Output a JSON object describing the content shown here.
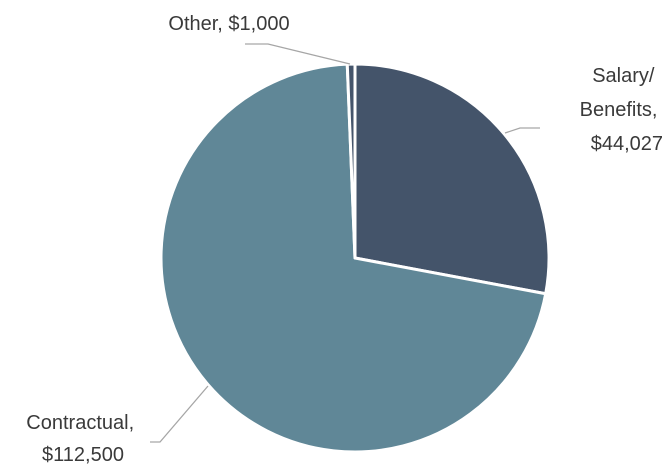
{
  "chart_data": {
    "type": "pie",
    "categories": [
      "Salary/ Benefits",
      "Contractual",
      "Other"
    ],
    "values": [
      44027,
      112500,
      1000
    ],
    "colors": [
      "#44546a",
      "#608797",
      "#45556b"
    ],
    "labels": [
      {
        "lines": [
          "Salary/",
          "Benefits,",
          "$44,027"
        ]
      },
      {
        "lines": [
          "Contractual,",
          "$112,500"
        ]
      },
      {
        "lines": [
          "Other, $1,000"
        ]
      }
    ]
  }
}
